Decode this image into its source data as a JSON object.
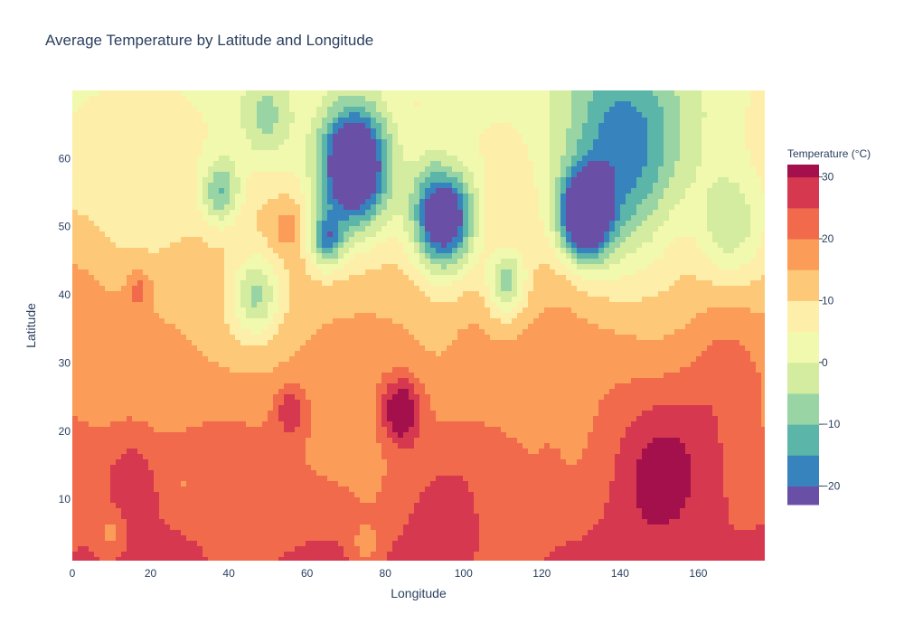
{
  "chart_data": {
    "type": "contour",
    "title": "Average Temperature by Latitude and Longitude",
    "xlabel": "Longitude",
    "ylabel": "Latitude",
    "xlim": [
      0,
      177
    ],
    "ylim": [
      1,
      70
    ],
    "x_ticks": [
      0,
      20,
      40,
      60,
      80,
      100,
      120,
      140,
      160
    ],
    "y_ticks": [
      10,
      20,
      30,
      40,
      50,
      60
    ],
    "x_tick_labels": [
      "0",
      "20",
      "40",
      "60",
      "80",
      "100",
      "120",
      "140",
      "160"
    ],
    "y_tick_labels": [
      "10",
      "20",
      "30",
      "40",
      "50",
      "60"
    ],
    "colorbar": {
      "title": "Temperature (°C)",
      "range": [
        -23,
        32
      ],
      "contour_levels": [
        -20,
        -15,
        -10,
        -5,
        0,
        5,
        10,
        15,
        20,
        25,
        30
      ],
      "tick_values": [
        -20,
        -10,
        0,
        10,
        20,
        30
      ],
      "tick_labels": [
        "−20",
        "−10",
        "0",
        "10",
        "20",
        "30"
      ],
      "colorscale": [
        {
          "max": -20,
          "color": "#6a4fa6"
        },
        {
          "max": -15,
          "color": "#3783bd"
        },
        {
          "max": -10,
          "color": "#5bb5a8"
        },
        {
          "max": -5,
          "color": "#99d5a4"
        },
        {
          "max": 0,
          "color": "#d3ec9f"
        },
        {
          "max": 5,
          "color": "#f1f9ae"
        },
        {
          "max": 10,
          "color": "#fdefa9"
        },
        {
          "max": 15,
          "color": "#fdc979"
        },
        {
          "max": 20,
          "color": "#fb9c59"
        },
        {
          "max": 25,
          "color": "#f06a4b"
        },
        {
          "max": 30,
          "color": "#d6384f"
        },
        {
          "max": 999,
          "color": "#a4104c"
        }
      ]
    },
    "field": {
      "base_top_temp": 5,
      "base_bottom_temp": 25,
      "features": [
        {
          "lon": 72,
          "lat": 59,
          "temp": -40,
          "radius": 9
        },
        {
          "lon": 95,
          "lat": 51.5,
          "temp": -35,
          "radius": 8
        },
        {
          "lon": 131,
          "lat": 51.5,
          "temp": -32,
          "radius": 6
        },
        {
          "lon": 140,
          "lat": 60,
          "temp": -18,
          "radius": 16
        },
        {
          "lon": 65,
          "lat": 48,
          "temp": -12,
          "radius": 4
        },
        {
          "lon": 38,
          "lat": 55,
          "temp": -10,
          "radius": 5
        },
        {
          "lon": 50,
          "lat": 66,
          "temp": -6,
          "radius": 7
        },
        {
          "lon": 47,
          "lat": 40,
          "temp": -5,
          "radius": 6
        },
        {
          "lon": 111,
          "lat": 42,
          "temp": -8,
          "radius": 5
        },
        {
          "lon": 168,
          "lat": 50,
          "temp": -3,
          "radius": 8
        },
        {
          "lon": 55,
          "lat": 50,
          "temp": 18,
          "radius": 4
        },
        {
          "lon": 97,
          "lat": 58,
          "temp": 14,
          "radius": 5
        },
        {
          "lon": 127,
          "lat": 43,
          "temp": 15,
          "radius": 5
        },
        {
          "lon": 84,
          "lat": 23,
          "temp": 38,
          "radius": 5
        },
        {
          "lon": 56,
          "lat": 23,
          "temp": 30,
          "radius": 4
        },
        {
          "lon": 15,
          "lat": 13,
          "temp": 30,
          "radius": 6
        },
        {
          "lon": 150,
          "lat": 14,
          "temp": 31,
          "radius": 12
        },
        {
          "lon": 95,
          "lat": 6,
          "temp": 30,
          "radius": 10
        },
        {
          "lon": 10,
          "lat": 5,
          "temp": 17,
          "radius": 4
        },
        {
          "lon": 75,
          "lat": 3,
          "temp": 17,
          "radius": 4
        },
        {
          "lon": 75,
          "lat": 12,
          "temp": 19,
          "radius": 3
        },
        {
          "lon": 28,
          "lat": 12,
          "temp": 19,
          "radius": 3
        },
        {
          "lon": 122,
          "lat": 15,
          "temp": 23,
          "radius": 3
        },
        {
          "lon": 17,
          "lat": 41,
          "temp": 22,
          "radius": 3
        },
        {
          "lon": 0,
          "lat": 40,
          "temp": 17,
          "radius": 10
        },
        {
          "lon": 102,
          "lat": 31,
          "temp": 21,
          "radius": 4
        },
        {
          "lon": 166,
          "lat": 30,
          "temp": 23,
          "radius": 10
        }
      ]
    }
  }
}
